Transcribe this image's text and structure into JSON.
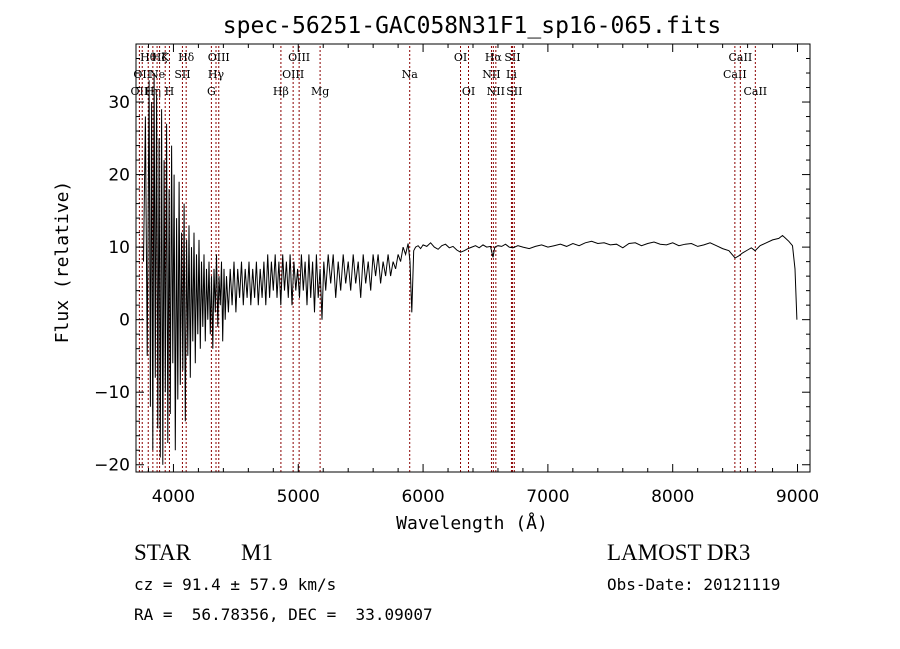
{
  "chart_data": {
    "type": "line",
    "title": "spec-56251-GAC058N31F1_sp16-065.fits",
    "xlabel": "Wavelength (Å)",
    "ylabel": "Flux (relative)",
    "xlim": [
      3700,
      9100
    ],
    "ylim": [
      -21,
      38
    ],
    "x_ticks": [
      4000,
      5000,
      6000,
      7000,
      8000,
      9000
    ],
    "x_tick_labels": [
      "4000",
      "5000",
      "6000",
      "7000",
      "8000",
      "9000"
    ],
    "y_ticks": [
      -20,
      -10,
      0,
      10,
      20,
      30
    ],
    "y_tick_labels": [
      "−20",
      "−10",
      "0",
      "10",
      "20",
      "30"
    ],
    "line_color": "#000000",
    "marker_color": "#8b0000",
    "series": [
      {
        "name": "flux",
        "points": [
          [
            3760,
            8
          ],
          [
            3775,
            28
          ],
          [
            3790,
            -5
          ],
          [
            3805,
            33
          ],
          [
            3815,
            -12
          ],
          [
            3825,
            30
          ],
          [
            3835,
            -18
          ],
          [
            3845,
            34
          ],
          [
            3855,
            -8
          ],
          [
            3865,
            31
          ],
          [
            3875,
            -15
          ],
          [
            3885,
            25
          ],
          [
            3895,
            -19
          ],
          [
            3905,
            29
          ],
          [
            3915,
            -20
          ],
          [
            3925,
            22
          ],
          [
            3935,
            -10
          ],
          [
            3945,
            27
          ],
          [
            3955,
            -17
          ],
          [
            3965,
            18
          ],
          [
            3975,
            -13
          ],
          [
            3985,
            24
          ],
          [
            3995,
            -6
          ],
          [
            4005,
            20
          ],
          [
            4015,
            -18
          ],
          [
            4025,
            14
          ],
          [
            4035,
            -11
          ],
          [
            4045,
            19
          ],
          [
            4055,
            -9
          ],
          [
            4065,
            12
          ],
          [
            4075,
            -7
          ],
          [
            4085,
            16
          ],
          [
            4095,
            -14
          ],
          [
            4105,
            11
          ],
          [
            4115,
            -5
          ],
          [
            4125,
            13
          ],
          [
            4135,
            -8
          ],
          [
            4145,
            10
          ],
          [
            4155,
            -3
          ],
          [
            4165,
            12
          ],
          [
            4175,
            -6
          ],
          [
            4185,
            9
          ],
          [
            4195,
            -2
          ],
          [
            4205,
            11
          ],
          [
            4215,
            -4
          ],
          [
            4225,
            8
          ],
          [
            4235,
            -1
          ],
          [
            4245,
            9
          ],
          [
            4255,
            -3
          ],
          [
            4265,
            7
          ],
          [
            4275,
            0
          ],
          [
            4285,
            8
          ],
          [
            4295,
            -2
          ],
          [
            4305,
            6
          ],
          [
            4315,
            -4
          ],
          [
            4325,
            7
          ],
          [
            4335,
            1
          ],
          [
            4345,
            9
          ],
          [
            4355,
            -1
          ],
          [
            4365,
            6
          ],
          [
            4375,
            2
          ],
          [
            4385,
            8
          ],
          [
            4395,
            -3
          ],
          [
            4405,
            7
          ],
          [
            4415,
            0
          ],
          [
            4425,
            6
          ],
          [
            4440,
            1
          ],
          [
            4455,
            7
          ],
          [
            4470,
            2
          ],
          [
            4485,
            8
          ],
          [
            4500,
            1
          ],
          [
            4515,
            7
          ],
          [
            4530,
            3
          ],
          [
            4545,
            8
          ],
          [
            4560,
            2
          ],
          [
            4575,
            7
          ],
          [
            4590,
            3
          ],
          [
            4605,
            8
          ],
          [
            4620,
            2
          ],
          [
            4635,
            7
          ],
          [
            4650,
            3
          ],
          [
            4665,
            8
          ],
          [
            4680,
            2
          ],
          [
            4695,
            7
          ],
          [
            4710,
            3
          ],
          [
            4725,
            8
          ],
          [
            4740,
            2
          ],
          [
            4755,
            9
          ],
          [
            4770,
            3
          ],
          [
            4785,
            8
          ],
          [
            4800,
            4
          ],
          [
            4815,
            9
          ],
          [
            4830,
            3
          ],
          [
            4845,
            8
          ],
          [
            4860,
            2
          ],
          [
            4875,
            9
          ],
          [
            4890,
            4
          ],
          [
            4905,
            8
          ],
          [
            4920,
            3
          ],
          [
            4935,
            9
          ],
          [
            4950,
            2
          ],
          [
            4965,
            8
          ],
          [
            4980,
            4
          ],
          [
            4995,
            7
          ],
          [
            5010,
            3
          ],
          [
            5025,
            9
          ],
          [
            5040,
            4
          ],
          [
            5055,
            8
          ],
          [
            5070,
            2
          ],
          [
            5085,
            9
          ],
          [
            5100,
            3
          ],
          [
            5115,
            8
          ],
          [
            5130,
            1
          ],
          [
            5145,
            9
          ],
          [
            5160,
            3
          ],
          [
            5175,
            7
          ],
          [
            5190,
            0
          ],
          [
            5205,
            8
          ],
          [
            5220,
            4
          ],
          [
            5240,
            9
          ],
          [
            5260,
            5
          ],
          [
            5280,
            9
          ],
          [
            5300,
            3
          ],
          [
            5320,
            8
          ],
          [
            5340,
            4
          ],
          [
            5360,
            9
          ],
          [
            5380,
            5
          ],
          [
            5400,
            8
          ],
          [
            5420,
            4
          ],
          [
            5440,
            9
          ],
          [
            5460,
            5
          ],
          [
            5480,
            8
          ],
          [
            5500,
            3
          ],
          [
            5520,
            9
          ],
          [
            5540,
            5
          ],
          [
            5560,
            8
          ],
          [
            5580,
            4
          ],
          [
            5600,
            9
          ],
          [
            5620,
            6
          ],
          [
            5640,
            9
          ],
          [
            5660,
            5
          ],
          [
            5680,
            8
          ],
          [
            5700,
            6
          ],
          [
            5720,
            9
          ],
          [
            5740,
            6
          ],
          [
            5760,
            8
          ],
          [
            5780,
            7
          ],
          [
            5800,
            9
          ],
          [
            5820,
            8
          ],
          [
            5840,
            10
          ],
          [
            5860,
            9
          ],
          [
            5880,
            10.5
          ],
          [
            5895,
            8
          ],
          [
            5910,
            1
          ],
          [
            5925,
            9.5
          ],
          [
            5940,
            10
          ],
          [
            5960,
            10.2
          ],
          [
            5980,
            9.8
          ],
          [
            6000,
            10.3
          ],
          [
            6030,
            10.1
          ],
          [
            6060,
            10.6
          ],
          [
            6090,
            10
          ],
          [
            6120,
            9.7
          ],
          [
            6150,
            10.2
          ],
          [
            6180,
            10.4
          ],
          [
            6210,
            9.9
          ],
          [
            6240,
            10.1
          ],
          [
            6270,
            9.6
          ],
          [
            6300,
            9.3
          ],
          [
            6330,
            9.5
          ],
          [
            6360,
            9.8
          ],
          [
            6390,
            10
          ],
          [
            6420,
            10.2
          ],
          [
            6450,
            9.9
          ],
          [
            6480,
            10.3
          ],
          [
            6510,
            10
          ],
          [
            6540,
            10.1
          ],
          [
            6560,
            8.6
          ],
          [
            6575,
            10
          ],
          [
            6600,
            10.2
          ],
          [
            6630,
            10.1
          ],
          [
            6660,
            10.4
          ],
          [
            6690,
            10
          ],
          [
            6720,
            9.9
          ],
          [
            6760,
            10.2
          ],
          [
            6800,
            10
          ],
          [
            6850,
            9.8
          ],
          [
            6900,
            10.1
          ],
          [
            6950,
            10.3
          ],
          [
            7000,
            10
          ],
          [
            7050,
            10.2
          ],
          [
            7100,
            10.4
          ],
          [
            7150,
            10.1
          ],
          [
            7200,
            10.5
          ],
          [
            7250,
            10.2
          ],
          [
            7300,
            10.6
          ],
          [
            7350,
            10.8
          ],
          [
            7400,
            10.5
          ],
          [
            7450,
            10.6
          ],
          [
            7500,
            10.3
          ],
          [
            7550,
            10.4
          ],
          [
            7600,
            9.9
          ],
          [
            7650,
            10.5
          ],
          [
            7700,
            10.6
          ],
          [
            7750,
            10.2
          ],
          [
            7800,
            10.5
          ],
          [
            7850,
            10.7
          ],
          [
            7900,
            10.4
          ],
          [
            7950,
            10.3
          ],
          [
            8000,
            10.6
          ],
          [
            8050,
            10.2
          ],
          [
            8100,
            10.4
          ],
          [
            8150,
            10.5
          ],
          [
            8200,
            10.1
          ],
          [
            8250,
            10.3
          ],
          [
            8300,
            10.6
          ],
          [
            8350,
            10.2
          ],
          [
            8400,
            9.8
          ],
          [
            8450,
            9.5
          ],
          [
            8500,
            8.5
          ],
          [
            8530,
            8.8
          ],
          [
            8560,
            9.2
          ],
          [
            8600,
            9.6
          ],
          [
            8630,
            9.9
          ],
          [
            8660,
            9.5
          ],
          [
            8700,
            10.2
          ],
          [
            8750,
            10.6
          ],
          [
            8800,
            11
          ],
          [
            8850,
            11.2
          ],
          [
            8880,
            11.6
          ],
          [
            8900,
            11.3
          ],
          [
            8930,
            10.8
          ],
          [
            8960,
            10.2
          ],
          [
            8980,
            7
          ],
          [
            8995,
            0
          ]
        ]
      }
    ],
    "line_markers": [
      {
        "wavelength": 3727,
        "label": "OII",
        "row": 2
      },
      {
        "wavelength": 3750,
        "label": "OII",
        "row": 1
      },
      {
        "wavelength": 3798,
        "label": "Hθ",
        "row": 0
      },
      {
        "wavelength": 3835,
        "label": "Hη",
        "row": 2
      },
      {
        "wavelength": 3869,
        "label": "Ne",
        "row": 1
      },
      {
        "wavelength": 3889,
        "label": "Hζ",
        "row": 0
      },
      {
        "wavelength": 3934,
        "label": "K",
        "row": 0
      },
      {
        "wavelength": 3968,
        "label": "H",
        "row": 2
      },
      {
        "wavelength": 4072,
        "label": "SII",
        "row": 1
      },
      {
        "wavelength": 4102,
        "label": "Hδ",
        "row": 0
      },
      {
        "wavelength": 4304,
        "label": "G",
        "row": 2
      },
      {
        "wavelength": 4341,
        "label": "Hγ",
        "row": 1
      },
      {
        "wavelength": 4363,
        "label": "OIII",
        "row": 0
      },
      {
        "wavelength": 4861,
        "label": "Hβ",
        "row": 2
      },
      {
        "wavelength": 4959,
        "label": "OIII",
        "row": 1
      },
      {
        "wavelength": 5007,
        "label": "OIII",
        "row": 0
      },
      {
        "wavelength": 5175,
        "label": "Mg",
        "row": 2
      },
      {
        "wavelength": 5893,
        "label": "Na",
        "row": 1
      },
      {
        "wavelength": 6300,
        "label": "OI",
        "row": 0
      },
      {
        "wavelength": 6364,
        "label": "OI",
        "row": 2
      },
      {
        "wavelength": 6548,
        "label": "NII",
        "row": 1
      },
      {
        "wavelength": 6563,
        "label": "Hα",
        "row": 0
      },
      {
        "wavelength": 6583,
        "label": "NII",
        "row": 2
      },
      {
        "wavelength": 6708,
        "label": "Li",
        "row": 1
      },
      {
        "wavelength": 6716,
        "label": "SII",
        "row": 0
      },
      {
        "wavelength": 6731,
        "label": "SII",
        "row": 2
      },
      {
        "wavelength": 8498,
        "label": "CaII",
        "row": 1
      },
      {
        "wavelength": 8542,
        "label": "CaII",
        "row": 0
      },
      {
        "wavelength": 8662,
        "label": "CaII",
        "row": 2
      }
    ]
  },
  "info": {
    "object_class": "STAR",
    "subclass": "M1",
    "survey": "LAMOST DR3",
    "redshift_line": "cz = 91.4 ± 57.9 km/s",
    "obs_date_line": "Obs-Date: 20121119",
    "coords_line": "RA =  56.78356, DEC =  33.09007"
  }
}
